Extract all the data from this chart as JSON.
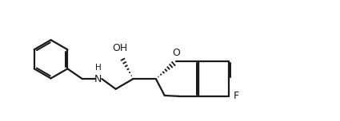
{
  "background": "#ffffff",
  "line_color": "#1a1a1a",
  "line_width": 1.6,
  "figsize": [
    4.25,
    1.52
  ],
  "dpi": 100,
  "xlim": [
    0,
    12
  ],
  "ylim": [
    -2.0,
    2.5
  ]
}
